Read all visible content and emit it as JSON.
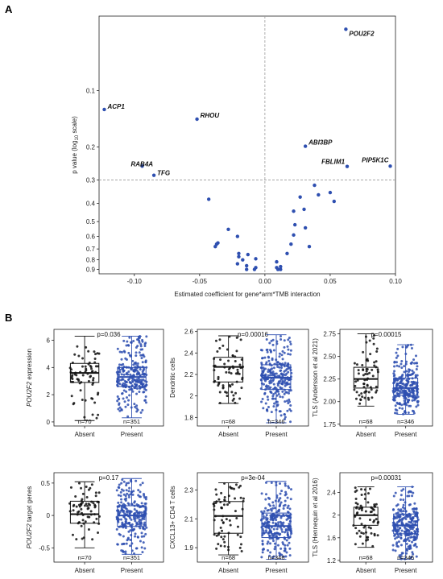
{
  "panels": {
    "a": "A",
    "b": "B"
  },
  "colors": {
    "present": "#2e4fb0",
    "absent": "#111111",
    "guide": "#999999"
  },
  "chart_data": [
    {
      "type": "scatter",
      "id": "volcano",
      "xlabel": "Estimated coefficient for gene*arm*TMB interaction",
      "ylabel": "p value (log",
      "ylabel_sub": "10",
      "ylabel_tail": " scale)",
      "xlim": [
        -0.127,
        0.1
      ],
      "ylim_pvalue": [
        0.04,
        0.95
      ],
      "y_scale": "log10-reversed",
      "x_ticks": [
        {
          "v": -0.1,
          "label": "-0.10"
        },
        {
          "v": -0.05,
          "label": "-0.05"
        },
        {
          "v": 0.0,
          "label": "0.00"
        },
        {
          "v": 0.05,
          "label": "0.05"
        },
        {
          "v": 0.1,
          "label": "0.10"
        }
      ],
      "y_ticks": [
        {
          "v": 0.1,
          "label": "0.1"
        },
        {
          "v": 0.2,
          "label": "0.2"
        },
        {
          "v": 0.3,
          "label": "0.3"
        },
        {
          "v": 0.4,
          "label": "0.4"
        },
        {
          "v": 0.5,
          "label": "0.5"
        },
        {
          "v": 0.6,
          "label": "0.6"
        },
        {
          "v": 0.7,
          "label": "0.7"
        },
        {
          "v": 0.8,
          "label": "0.8"
        },
        {
          "v": 0.9,
          "label": "0.9"
        }
      ],
      "threshold_p": 0.3,
      "labeled_points": [
        {
          "label": "POU2F2",
          "x": 0.062,
          "p": 0.047
        },
        {
          "label": "ACP1",
          "x": -0.123,
          "p": 0.126
        },
        {
          "label": "RHOU",
          "x": -0.052,
          "p": 0.142
        },
        {
          "label": "ABI3BP",
          "x": 0.031,
          "p": 0.198
        },
        {
          "label": "FBLIM1",
          "x": 0.063,
          "p": 0.254
        },
        {
          "label": "PIP5K1C",
          "x": 0.096,
          "p": 0.253
        },
        {
          "label": "RAB4A",
          "x": -0.094,
          "p": 0.253
        },
        {
          "label": "TFG",
          "x": -0.085,
          "p": 0.283
        }
      ],
      "points": [
        {
          "x": -0.043,
          "p": 0.38
        },
        {
          "x": -0.028,
          "p": 0.55
        },
        {
          "x": -0.021,
          "p": 0.6
        },
        {
          "x": -0.037,
          "p": 0.66
        },
        {
          "x": -0.036,
          "p": 0.65
        },
        {
          "x": -0.038,
          "p": 0.68
        },
        {
          "x": -0.02,
          "p": 0.74
        },
        {
          "x": -0.02,
          "p": 0.77
        },
        {
          "x": -0.013,
          "p": 0.75
        },
        {
          "x": -0.017,
          "p": 0.8
        },
        {
          "x": -0.007,
          "p": 0.79
        },
        {
          "x": -0.021,
          "p": 0.84
        },
        {
          "x": -0.014,
          "p": 0.86
        },
        {
          "x": -0.007,
          "p": 0.88
        },
        {
          "x": -0.014,
          "p": 0.9
        },
        {
          "x": -0.008,
          "p": 0.9
        },
        {
          "x": 0.009,
          "p": 0.82
        },
        {
          "x": 0.009,
          "p": 0.88
        },
        {
          "x": 0.01,
          "p": 0.9
        },
        {
          "x": 0.012,
          "p": 0.9
        },
        {
          "x": 0.012,
          "p": 0.87
        },
        {
          "x": 0.017,
          "p": 0.74
        },
        {
          "x": 0.02,
          "p": 0.66
        },
        {
          "x": 0.022,
          "p": 0.59
        },
        {
          "x": 0.023,
          "p": 0.52
        },
        {
          "x": 0.022,
          "p": 0.44
        },
        {
          "x": 0.027,
          "p": 0.37
        },
        {
          "x": 0.03,
          "p": 0.43
        },
        {
          "x": 0.031,
          "p": 0.54
        },
        {
          "x": 0.034,
          "p": 0.68
        },
        {
          "x": 0.038,
          "p": 0.32
        },
        {
          "x": 0.041,
          "p": 0.36
        },
        {
          "x": 0.05,
          "p": 0.35
        },
        {
          "x": 0.053,
          "p": 0.39
        }
      ]
    },
    {
      "type": "box",
      "id": "pou2f2-expression",
      "ylabel_italic": "POU2F2",
      "ylabel_rest": " expression",
      "ylim": [
        -0.3,
        6.8
      ],
      "yticks": [
        0,
        2,
        4,
        6
      ],
      "ptext": "p=0.036",
      "categories": [
        "Absent",
        "Present"
      ],
      "n_labels": [
        "n=70",
        "n=351"
      ],
      "groups": [
        {
          "name": "Absent",
          "min": 0.1,
          "q1": 2.9,
          "median": 3.6,
          "q3": 4.3,
          "max": 6.3,
          "n": 70
        },
        {
          "name": "Present",
          "min": 0.3,
          "q1": 2.6,
          "median": 3.3,
          "q3": 4.0,
          "max": 6.3,
          "n": 351
        }
      ]
    },
    {
      "type": "box",
      "id": "dendritic-cells",
      "ylabel_italic": "",
      "ylabel_rest": "Dendritic cells",
      "ylim": [
        1.72,
        2.62
      ],
      "yticks": [
        1.8,
        2.0,
        2.2,
        2.4,
        2.6
      ],
      "ptext": "p=0.00016",
      "categories": [
        "Absent",
        "Present"
      ],
      "n_labels": [
        "n=68",
        "n=346"
      ],
      "groups": [
        {
          "name": "Absent",
          "min": 1.93,
          "q1": 2.13,
          "median": 2.27,
          "q3": 2.36,
          "max": 2.56,
          "n": 68
        },
        {
          "name": "Present",
          "min": 1.75,
          "q1": 2.06,
          "median": 2.17,
          "q3": 2.29,
          "max": 2.57,
          "n": 346
        }
      ]
    },
    {
      "type": "box",
      "id": "tls-andersson",
      "ylabel_italic": "",
      "ylabel_rest": "TLS (Andersson et al 2021)",
      "ylim": [
        1.73,
        2.8
      ],
      "yticks": [
        1.75,
        2.0,
        2.25,
        2.5,
        2.75
      ],
      "ptext": "p=0.00015",
      "categories": [
        "Absent",
        "Present"
      ],
      "n_labels": [
        "n=68",
        "n=346"
      ],
      "groups": [
        {
          "name": "Absent",
          "min": 1.95,
          "q1": 2.15,
          "median": 2.25,
          "q3": 2.38,
          "max": 2.75,
          "n": 68
        },
        {
          "name": "Present",
          "min": 1.86,
          "q1": 2.07,
          "median": 2.15,
          "q3": 2.26,
          "max": 2.63,
          "n": 346
        }
      ]
    },
    {
      "type": "box",
      "id": "pou2f2-target-genes",
      "ylabel_italic": "POU2F2",
      "ylabel_rest": " target genes",
      "ylim": [
        -0.72,
        0.66
      ],
      "yticks": [
        -0.5,
        0.0,
        0.5
      ],
      "ptext": "p=0.17",
      "categories": [
        "Absent",
        "Present"
      ],
      "n_labels": [
        "n=70",
        "n=351"
      ],
      "groups": [
        {
          "name": "Absent",
          "min": -0.5,
          "q1": -0.12,
          "median": 0.02,
          "q3": 0.22,
          "max": 0.52,
          "n": 70
        },
        {
          "name": "Present",
          "min": -0.6,
          "q1": -0.17,
          "median": 0.0,
          "q3": 0.15,
          "max": 0.57,
          "n": 351
        }
      ]
    },
    {
      "type": "box",
      "id": "cxcl13-cd4",
      "ylabel_italic": "",
      "ylabel_rest": "CXCL13+ CD4 T cells",
      "ylim": [
        1.8,
        2.42
      ],
      "yticks": [
        1.9,
        2.1,
        2.3
      ],
      "ptext": "p=3e-04",
      "categories": [
        "Absent",
        "Present"
      ],
      "n_labels": [
        "n=68",
        "n=346"
      ],
      "groups": [
        {
          "name": "Absent",
          "min": 1.85,
          "q1": 2.0,
          "median": 2.12,
          "q3": 2.22,
          "max": 2.35,
          "n": 68
        },
        {
          "name": "Present",
          "min": 1.82,
          "q1": 1.97,
          "median": 2.05,
          "q3": 2.14,
          "max": 2.36,
          "n": 346
        }
      ]
    },
    {
      "type": "box",
      "id": "tls-hennequin",
      "ylabel_italic": "",
      "ylabel_rest": "TLS (Hennequin et al 2016)",
      "ylim": [
        1.17,
        2.75
      ],
      "yticks": [
        1.2,
        1.6,
        2.0,
        2.4
      ],
      "ptext": "p=0.00031",
      "categories": [
        "Absent",
        "Present"
      ],
      "n_labels": [
        "n=68",
        "n=346"
      ],
      "groups": [
        {
          "name": "Absent",
          "min": 1.43,
          "q1": 1.82,
          "median": 2.0,
          "q3": 2.14,
          "max": 2.5,
          "n": 68
        },
        {
          "name": "Present",
          "min": 1.22,
          "q1": 1.67,
          "median": 1.82,
          "q3": 2.02,
          "max": 2.5,
          "n": 346
        }
      ]
    }
  ]
}
